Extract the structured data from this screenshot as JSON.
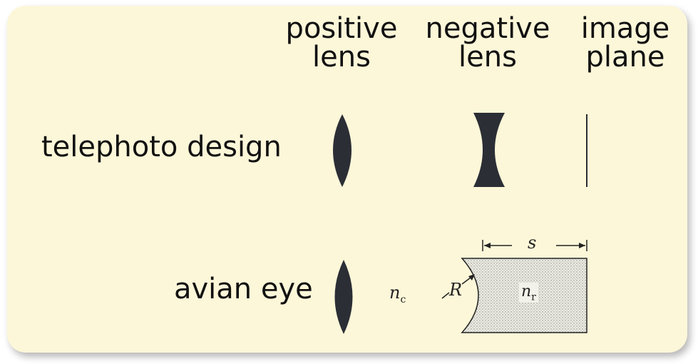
{
  "headers": {
    "positive_lens": [
      "positive",
      "lens"
    ],
    "negative_lens": [
      "negative",
      "lens"
    ],
    "image_plane": [
      "image",
      "plane"
    ]
  },
  "rows": {
    "telephoto": "telephoto design",
    "avian": "avian eye"
  },
  "symbols": {
    "n_c_base": "n",
    "n_c_sub": "c",
    "r_label": "R",
    "n_r_base": "n",
    "n_r_sub": "r",
    "s_label": "s"
  },
  "colors": {
    "card_background": "#fdf7d9",
    "lens_fill": "#2b2e35",
    "ink": "#111111"
  }
}
